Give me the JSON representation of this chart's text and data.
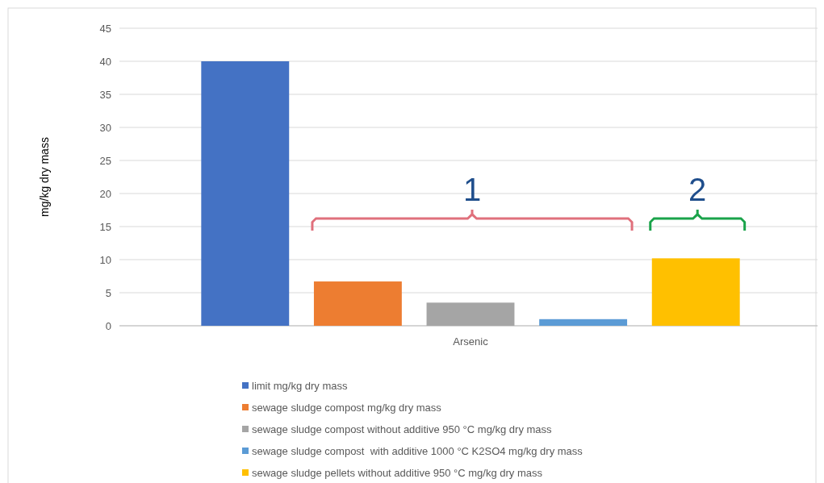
{
  "chart_data": {
    "type": "bar",
    "categories": [
      "Arsenic"
    ],
    "ylabel": "mg/kg dry mass",
    "ylim": [
      0,
      45
    ],
    "yticks": [
      0,
      5,
      10,
      15,
      20,
      25,
      30,
      35,
      40,
      45
    ],
    "grid": "y",
    "legend": "bottom",
    "series": [
      {
        "name": "limit mg/kg dry mass",
        "color": "#4472c4",
        "values": [
          40
        ]
      },
      {
        "name": "sewage sludge compost mg/kg dry mass",
        "color": "#ed7d31",
        "values": [
          6.7
        ]
      },
      {
        "name": "sewage sludge compost without additive 950 °C mg/kg dry mass",
        "color": "#a5a5a5",
        "values": [
          3.5
        ]
      },
      {
        "name": "sewage sludge compost  with additive 1000 °C K2SO4 mg/kg dry mass",
        "color": "#5b9bd5",
        "values": [
          1.0
        ]
      },
      {
        "name": "sewage sludge pellets without additive 950 °C mg/kg dry mass",
        "color": "#ffc000",
        "values": [
          10.2
        ]
      }
    ],
    "annotations": [
      "1",
      "2"
    ]
  }
}
